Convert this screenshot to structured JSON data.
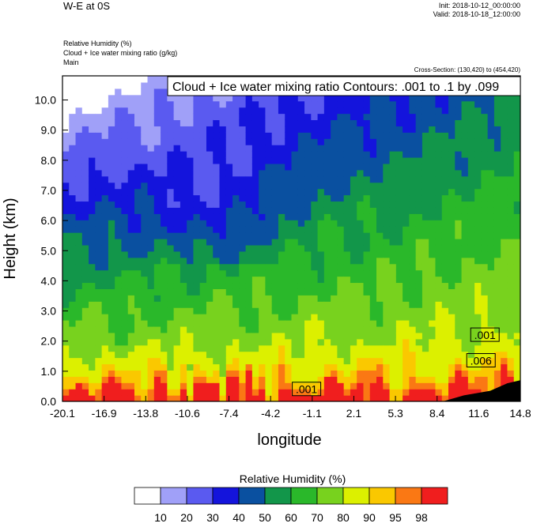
{
  "header": {
    "title": "W-E at 0S",
    "init": "Init: 2018-10-12_00:00:00",
    "valid": "Valid: 2018-10-18_12:00:00",
    "field1": "Relative Humidity   (%)",
    "field2": "Cloud + Ice water mixing ratio   (g/kg)",
    "field3": "Main",
    "cross_section": "Cross-Section: (130,420) to (454,420)"
  },
  "chart_data": {
    "type": "heatmap",
    "title": "Cloud + Ice water mixing ratio Contours: .001 to .1 by .099",
    "xlabel": "longitude",
    "ylabel": "Height (km)",
    "xlim": [
      -20.1,
      14.8
    ],
    "ylim": [
      0,
      10.8
    ],
    "x_ticks": [
      "-20.1",
      "-16.9",
      "-13.8",
      "-10.6",
      "-7.4",
      "-4.2",
      "-1.1",
      "2.1",
      "5.3",
      "8.4",
      "11.6",
      "14.8"
    ],
    "y_ticks": [
      "0.0",
      "1.0",
      "2.0",
      "3.0",
      "4.0",
      "5.0",
      "6.0",
      "7.0",
      "8.0",
      "9.0",
      "10.0"
    ],
    "contour_labels": [
      {
        "text": ".001",
        "lon": -1.5,
        "height": 0.4
      },
      {
        "text": ".001",
        "lon": 12.1,
        "height": 2.2
      },
      {
        "text": ".006",
        "lon": 11.8,
        "height": 1.35
      }
    ],
    "colorbar": {
      "label": "Relative Humidity  (%)",
      "levels": [
        "10",
        "20",
        "30",
        "40",
        "50",
        "60",
        "70",
        "80",
        "90",
        "95",
        "98"
      ],
      "colors": [
        "#ffffff",
        "#a0a0f8",
        "#5a5af0",
        "#1414dc",
        "#0a50a0",
        "#12964a",
        "#2ab82a",
        "#78d21e",
        "#dcf000",
        "#fac800",
        "#fa7814",
        "#f01e1e"
      ]
    }
  }
}
